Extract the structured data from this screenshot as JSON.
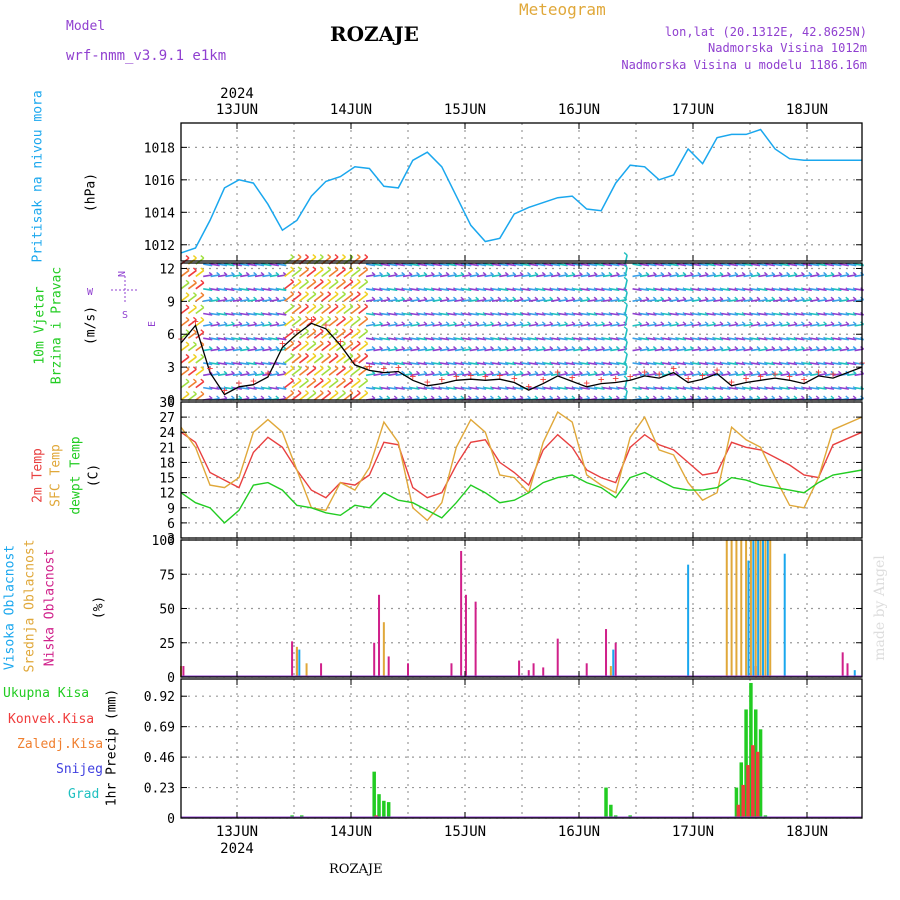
{
  "header": {
    "model_label": "Model",
    "model_name": "wrf-nmm_v3.9.1 e1km",
    "station": "ROZAJE",
    "product": "Meteogram",
    "coords": "lon,lat (20.1312E, 42.8625N)",
    "elevation": "Nadmorska Visina 1012m",
    "model_elevation": "Nadmorska Visina u modelu 1186.16m"
  },
  "colors": {
    "pressure": "#1aa7ee",
    "wind_fast": "#f03c3c",
    "temp2m": "#e84040",
    "sfc": "#e0a83a",
    "dewpt": "#22cc22",
    "high_cloud": "#1aa7ee",
    "mid_cloud": "#e0a83a",
    "low_cloud": "#d0208a",
    "total_precip": "#22cc22",
    "conv_precip": "#f03c3c",
    "frozen": "#f08030",
    "snow": "#4040e0",
    "grad": "#20c0c0",
    "purple": "#9040d0",
    "gray": "#999999"
  },
  "time_axis": {
    "year": "2024",
    "days": [
      "13JUN",
      "14JUN",
      "15JUN",
      "16JUN",
      "17JUN",
      "18JUN"
    ]
  },
  "footer": {
    "station": "ROZAJE",
    "credit": "made by Angel"
  },
  "chart_data": [
    {
      "type": "line",
      "panel": "pressure",
      "ylabel": [
        "Pritisak na nivou mora",
        "(hPa)"
      ],
      "yticks": [
        1012,
        1014,
        1016,
        1018
      ],
      "ylim": [
        1011,
        1019.5
      ],
      "x_hours": [
        0,
        3,
        6,
        9,
        12,
        15,
        18,
        21,
        24,
        27,
        30,
        33,
        36,
        39,
        42,
        45,
        48,
        51,
        54,
        57,
        60,
        63,
        66,
        69,
        72,
        75,
        78,
        81,
        84,
        87,
        90,
        93,
        96,
        99,
        102,
        105,
        108,
        111,
        114,
        117,
        120,
        123,
        126,
        129,
        132,
        135,
        141
      ],
      "values": [
        1011.5,
        1011.8,
        1013.5,
        1015.5,
        1016.0,
        1015.8,
        1014.5,
        1012.9,
        1013.5,
        1015.0,
        1015.9,
        1016.2,
        1016.8,
        1016.7,
        1015.6,
        1015.5,
        1017.2,
        1017.7,
        1016.8,
        1015.0,
        1013.2,
        1012.2,
        1012.4,
        1013.9,
        1014.3,
        1014.6,
        1014.9,
        1015.0,
        1014.2,
        1014.1,
        1015.8,
        1016.9,
        1016.8,
        1016.0,
        1016.3,
        1017.9,
        1017.0,
        1018.6,
        1018.8,
        1018.8,
        1019.1,
        1017.9,
        1017.3,
        1017.2,
        1017.2,
        1017.2,
        1017.2
      ]
    },
    {
      "type": "line",
      "panel": "wind",
      "ylabel": [
        "10m Vjetar",
        "Brzina i Pravac",
        "(m/s)"
      ],
      "compass": {
        "n": "N",
        "e": "E",
        "w": "W",
        "s": "S"
      },
      "yticks": [
        0,
        3,
        6,
        9,
        12
      ],
      "ylim": [
        0,
        12.5
      ],
      "x_hours": [
        0,
        3,
        6,
        9,
        12,
        15,
        18,
        21,
        24,
        27,
        30,
        33,
        36,
        39,
        42,
        45,
        48,
        51,
        54,
        57,
        60,
        63,
        66,
        69,
        72,
        75,
        78,
        81,
        84,
        87,
        90,
        93,
        96,
        99,
        102,
        105,
        108,
        111,
        114,
        117,
        120,
        123,
        126,
        129,
        132,
        135,
        141
      ],
      "values": [
        5.2,
        6.8,
        2.5,
        0.5,
        1.2,
        1.4,
        2.1,
        4.8,
        6.0,
        7.0,
        6.5,
        5.0,
        3.2,
        2.7,
        2.5,
        2.6,
        1.8,
        1.3,
        1.5,
        1.8,
        1.9,
        1.8,
        1.9,
        1.6,
        0.9,
        1.5,
        2.2,
        1.7,
        1.2,
        1.5,
        1.6,
        1.8,
        2.2,
        2.0,
        2.5,
        1.6,
        1.9,
        2.4,
        1.3,
        1.6,
        1.8,
        2.0,
        1.8,
        1.5,
        2.2,
        2.0,
        3.0
      ]
    },
    {
      "type": "line",
      "panel": "temperature",
      "ylabel": [
        "2m Temp",
        "SFC Temp",
        "dewpt Temp",
        "(C)"
      ],
      "yticks": [
        3,
        6,
        9,
        12,
        15,
        18,
        21,
        24,
        27,
        30
      ],
      "ylim": [
        3,
        30
      ],
      "x_hours": [
        0,
        3,
        6,
        9,
        12,
        15,
        18,
        21,
        24,
        27,
        30,
        33,
        36,
        39,
        42,
        45,
        48,
        51,
        54,
        57,
        60,
        63,
        66,
        69,
        72,
        75,
        78,
        81,
        84,
        87,
        90,
        93,
        96,
        99,
        102,
        105,
        108,
        111,
        114,
        117,
        120,
        123,
        126,
        129,
        132,
        135,
        141
      ],
      "series": [
        {
          "name": "2m Temp",
          "color": "#e84040",
          "values": [
            24.0,
            22.0,
            16.0,
            14.5,
            13.0,
            20.0,
            23.0,
            21.0,
            16.5,
            12.5,
            11.0,
            14.0,
            13.5,
            15.5,
            22.0,
            21.5,
            13.0,
            11.0,
            12.0,
            17.5,
            22.0,
            22.5,
            18.0,
            16.0,
            13.5,
            20.5,
            23.5,
            21.0,
            16.5,
            15.0,
            14.0,
            21.0,
            23.5,
            21.5,
            20.5,
            18.0,
            15.5,
            16.0,
            22.0,
            21.0,
            20.5,
            19.0,
            17.5,
            15.5,
            15.0,
            21.5,
            24.0
          ]
        },
        {
          "name": "SFC Temp",
          "color": "#e0a83a",
          "values": [
            25.0,
            21.0,
            13.5,
            13.0,
            15.0,
            24.0,
            26.5,
            24.0,
            16.5,
            9.0,
            8.5,
            14.0,
            12.5,
            17.0,
            26.0,
            22.0,
            9.0,
            6.5,
            10.0,
            21.0,
            26.5,
            24.0,
            15.5,
            15.0,
            12.0,
            22.0,
            28.0,
            26.0,
            15.5,
            13.5,
            12.0,
            23.0,
            27.0,
            20.5,
            19.5,
            14.0,
            10.5,
            12.0,
            25.0,
            22.5,
            21.0,
            15.0,
            9.5,
            9.0,
            15.0,
            24.5,
            27.0
          ]
        },
        {
          "name": "dewpt Temp",
          "color": "#22cc22",
          "values": [
            12.0,
            10.0,
            9.0,
            6.0,
            8.5,
            13.5,
            14.0,
            12.5,
            9.5,
            9.0,
            8.0,
            7.5,
            9.5,
            9.0,
            12.0,
            10.5,
            10.0,
            8.5,
            7.0,
            10.0,
            13.5,
            12.0,
            10.0,
            10.5,
            12.0,
            14.0,
            15.0,
            15.5,
            14.0,
            13.0,
            11.0,
            15.0,
            16.0,
            14.5,
            13.0,
            12.5,
            12.5,
            13.0,
            15.0,
            14.5,
            13.5,
            13.0,
            12.5,
            12.0,
            14.0,
            15.5,
            16.5
          ]
        }
      ]
    },
    {
      "type": "bar",
      "panel": "clouds",
      "ylabel": [
        "Visoka Oblacnost",
        "Srednja Oblacnost",
        "Niska Oblacnost",
        "(%)"
      ],
      "yticks": [
        0,
        25,
        50,
        75,
        100
      ],
      "ylim": [
        0,
        100
      ],
      "series": [
        {
          "name": "Niska Oblacnost",
          "color": "#d0208a",
          "points": [
            [
              0.5,
              8
            ],
            [
              23,
              26
            ],
            [
              24,
              20
            ],
            [
              29,
              10
            ],
            [
              40,
              25
            ],
            [
              41,
              60
            ],
            [
              43,
              15
            ],
            [
              47,
              10
            ],
            [
              56,
              10
            ],
            [
              58,
              92
            ],
            [
              59,
              60
            ],
            [
              61,
              55
            ],
            [
              70,
              12
            ],
            [
              72,
              5
            ],
            [
              73,
              10
            ],
            [
              75,
              7
            ],
            [
              78,
              28
            ],
            [
              84,
              10
            ],
            [
              88,
              35
            ],
            [
              90,
              25
            ],
            [
              119,
              8
            ],
            [
              137,
              18
            ],
            [
              138,
              10
            ]
          ]
        },
        {
          "name": "Srednja Oblacnost",
          "color": "#e0a83a",
          "points": [
            [
              0,
              8
            ],
            [
              24,
              22
            ],
            [
              26,
              10
            ],
            [
              42,
              40
            ],
            [
              89,
              8
            ],
            [
              113,
              100
            ],
            [
              114,
              100
            ],
            [
              115,
              100
            ],
            [
              116,
              100
            ],
            [
              117,
              100
            ],
            [
              118,
              100
            ],
            [
              119,
              100
            ],
            [
              120,
              100
            ],
            [
              121,
              100
            ],
            [
              122,
              100
            ]
          ]
        },
        {
          "name": "Visoka Oblacnost",
          "color": "#1aa7ee",
          "points": [
            [
              24.5,
              20
            ],
            [
              89.5,
              20
            ],
            [
              105,
              82
            ],
            [
              117.5,
              85
            ],
            [
              118.5,
              100
            ],
            [
              119.5,
              100
            ],
            [
              120.5,
              100
            ],
            [
              121.5,
              100
            ],
            [
              125,
              90
            ],
            [
              139.5,
              5
            ]
          ]
        }
      ]
    },
    {
      "type": "bar",
      "panel": "precipitation",
      "ylabel": [
        "1hr Precip (mm)"
      ],
      "legend": [
        "Ukupna Kisa",
        "Konvek.Kisa",
        "Zaledj.Kisa",
        "Snijeg",
        "Grad"
      ],
      "yticks": [
        0,
        0.23,
        0.46,
        0.69,
        0.92
      ],
      "ylim": [
        0,
        1.05
      ],
      "series": [
        {
          "name": "Ukupna Kisa",
          "color": "#22cc22",
          "points": [
            [
              23,
              0.02
            ],
            [
              25,
              0.02
            ],
            [
              40,
              0.35
            ],
            [
              41,
              0.18
            ],
            [
              42,
              0.13
            ],
            [
              43,
              0.12
            ],
            [
              88,
              0.23
            ],
            [
              89,
              0.1
            ],
            [
              90,
              0.02
            ],
            [
              93,
              0.02
            ],
            [
              115,
              0.23
            ],
            [
              116,
              0.42
            ],
            [
              117,
              0.82
            ],
            [
              118,
              1.02
            ],
            [
              119,
              0.82
            ],
            [
              120,
              0.67
            ],
            [
              121,
              0.02
            ]
          ]
        },
        {
          "name": "Konvek.Kisa",
          "color": "#f03c3c",
          "points": [
            [
              23.4,
              0.01
            ],
            [
              40.4,
              0.02
            ],
            [
              115.4,
              0.1
            ],
            [
              116.4,
              0.25
            ],
            [
              117.4,
              0.4
            ],
            [
              118.4,
              0.55
            ],
            [
              119.4,
              0.5
            ]
          ]
        }
      ]
    }
  ]
}
